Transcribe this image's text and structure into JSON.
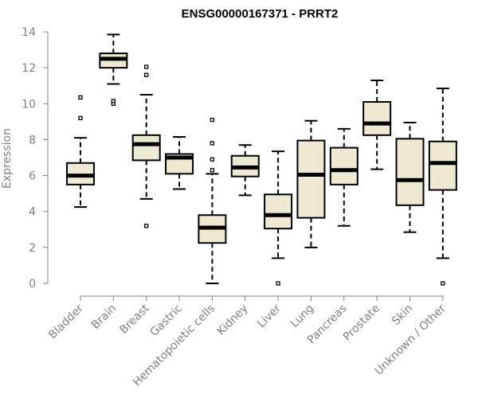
{
  "chart_data": {
    "type": "boxplot",
    "title": "ENSG00000167371 - PRRT2",
    "xlabel": "",
    "ylabel": "Expression",
    "ylim": [
      0,
      14
    ],
    "yticks": [
      0,
      2,
      4,
      6,
      8,
      10,
      12,
      14
    ],
    "categories": [
      "Bladder",
      "Brain",
      "Breast",
      "Gastric",
      "Hematopoietic cells",
      "Kidney",
      "Liver",
      "Lung",
      "Pancreas",
      "Prostate",
      "Skin",
      "Unknown / Other"
    ],
    "boxes": [
      {
        "category": "Bladder",
        "whisker_low": 4.25,
        "q1": 5.5,
        "median": 6.0,
        "q3": 6.7,
        "whisker_high": 8.1,
        "outliers": [
          9.2,
          10.35
        ]
      },
      {
        "category": "Brain",
        "whisker_low": 11.1,
        "q1": 12.0,
        "median": 12.5,
        "q3": 12.8,
        "whisker_high": 13.85,
        "outliers": [
          10.0,
          10.15
        ]
      },
      {
        "category": "Breast",
        "whisker_low": 4.7,
        "q1": 6.85,
        "median": 7.75,
        "q3": 8.25,
        "whisker_high": 10.5,
        "outliers": [
          3.2,
          11.6,
          12.05
        ]
      },
      {
        "category": "Gastric",
        "whisker_low": 5.25,
        "q1": 6.1,
        "median": 7.0,
        "q3": 7.2,
        "whisker_high": 8.15,
        "outliers": []
      },
      {
        "category": "Hematopoietic cells",
        "whisker_low": 0.0,
        "q1": 2.25,
        "median": 3.1,
        "q3": 3.8,
        "whisker_high": 6.1,
        "outliers": [
          6.3,
          6.9,
          7.8,
          9.1
        ]
      },
      {
        "category": "Kidney",
        "whisker_low": 4.9,
        "q1": 5.95,
        "median": 6.45,
        "q3": 7.1,
        "whisker_high": 7.7,
        "outliers": []
      },
      {
        "category": "Liver",
        "whisker_low": 1.4,
        "q1": 3.05,
        "median": 3.8,
        "q3": 4.95,
        "whisker_high": 7.35,
        "outliers": [
          0.0
        ]
      },
      {
        "category": "Lung",
        "whisker_low": 2.0,
        "q1": 3.65,
        "median": 6.05,
        "q3": 7.95,
        "whisker_high": 9.05,
        "outliers": []
      },
      {
        "category": "Pancreas",
        "whisker_low": 3.2,
        "q1": 5.5,
        "median": 6.3,
        "q3": 7.55,
        "whisker_high": 8.6,
        "outliers": []
      },
      {
        "category": "Prostate",
        "whisker_low": 6.35,
        "q1": 8.25,
        "median": 8.9,
        "q3": 10.1,
        "whisker_high": 11.3,
        "outliers": []
      },
      {
        "category": "Skin",
        "whisker_low": 2.85,
        "q1": 4.35,
        "median": 5.75,
        "q3": 8.05,
        "whisker_high": 8.95,
        "outliers": []
      },
      {
        "category": "Unknown / Other",
        "whisker_low": 1.4,
        "q1": 5.2,
        "median": 6.7,
        "q3": 7.9,
        "whisker_high": 10.85,
        "outliers": [
          0.0
        ]
      }
    ],
    "colors": {
      "box_fill": "#efe9d3",
      "box_stroke": "#000000",
      "axis": "#808080",
      "text": "#808080",
      "title": "#000000"
    }
  }
}
